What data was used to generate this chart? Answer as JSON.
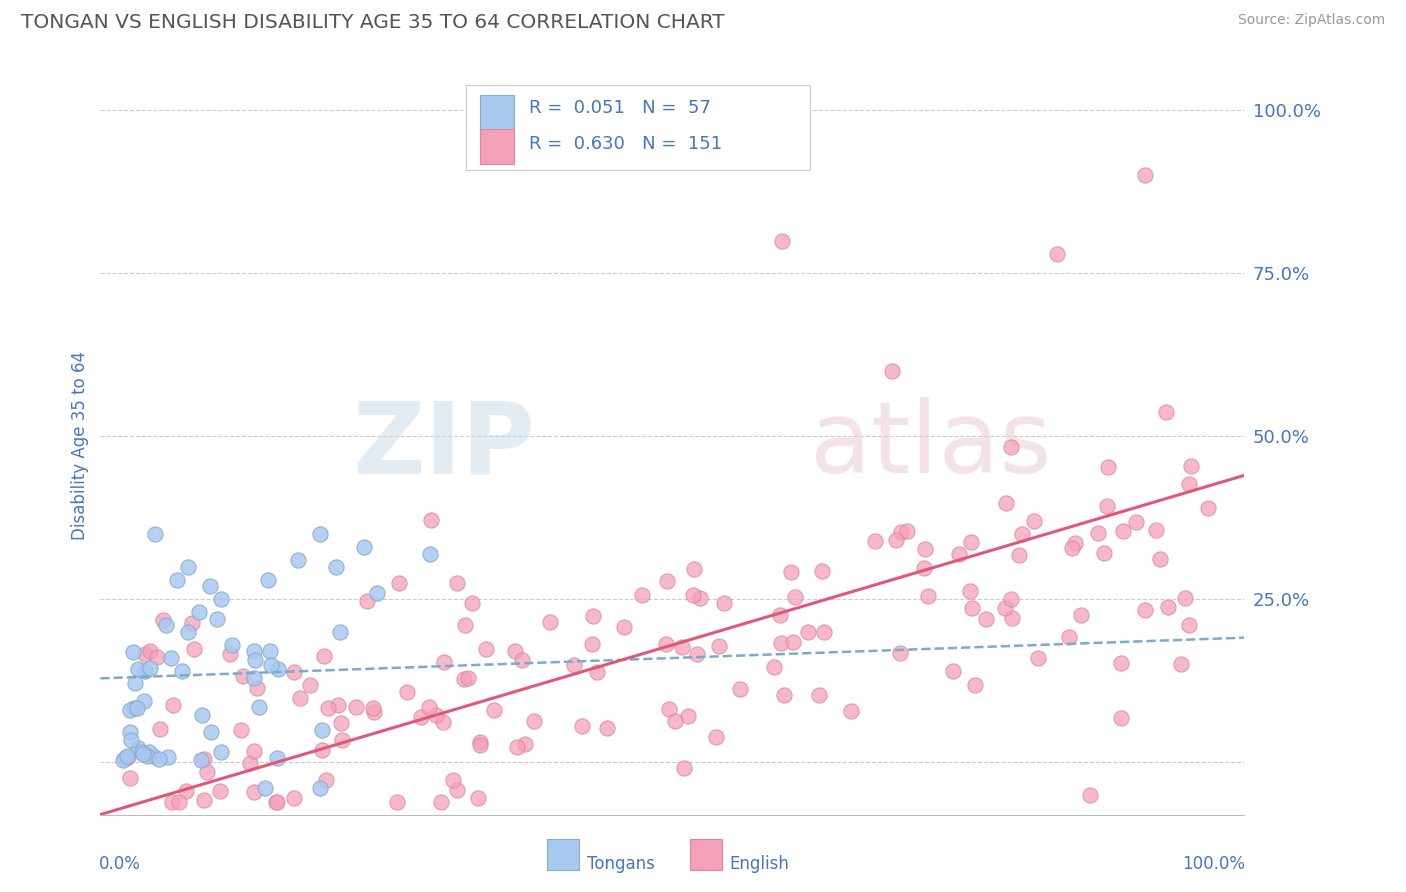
{
  "title": "TONGAN VS ENGLISH DISABILITY AGE 35 TO 64 CORRELATION CHART",
  "source": "Source: ZipAtlas.com",
  "ylabel": "Disability Age 35 to 64",
  "ytick_labels": [
    "",
    "25.0%",
    "50.0%",
    "75.0%",
    "100.0%"
  ],
  "ytick_positions": [
    0.0,
    0.25,
    0.5,
    0.75,
    1.0
  ],
  "xlim": [
    -0.02,
    1.02
  ],
  "ylim": [
    -0.08,
    1.05
  ],
  "legend_r_tongan": "R = 0.051",
  "legend_n_tongan": "N = 57",
  "legend_r_english": "R = 0.630",
  "legend_n_english": "N = 151",
  "tongan_color": "#a8c8f0",
  "english_color": "#f5a0b8",
  "tongan_line_color": "#7aaad0",
  "english_line_color": "#e05878",
  "tongan_marker_edge": "#88aacc",
  "english_marker_edge": "#d888a0",
  "background_color": "#ffffff",
  "grid_color": "#cccccc",
  "title_color": "#555555",
  "axis_label_color": "#4477bb",
  "tick_color": "#4477bb",
  "n_tongan": 57,
  "n_english": 151,
  "r_tongan": 0.051,
  "r_english": 0.63
}
